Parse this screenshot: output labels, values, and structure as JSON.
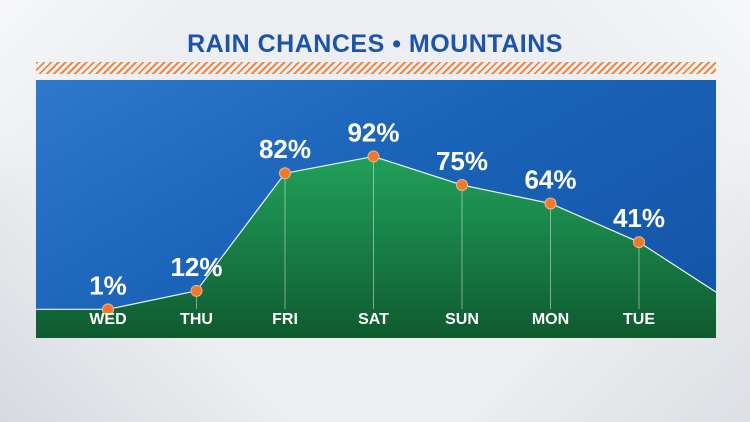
{
  "title": "RAIN CHANCES •  MOUNTAINS",
  "colors": {
    "title": "#1c54a8",
    "sky": "#1a63b8",
    "area_top": "#21a15a",
    "area_bottom": "#0f5a30",
    "marker": "#ef7a2c",
    "stripe": "#ea8a45"
  },
  "chart_data": {
    "type": "area",
    "title": "RAIN CHANCES •  MOUNTAINS",
    "categories": [
      "WED",
      "THU",
      "FRI",
      "SAT",
      "SUN",
      "MON",
      "TUE"
    ],
    "values": [
      1,
      12,
      82,
      92,
      75,
      64,
      41
    ],
    "data_labels": [
      "1%",
      "12%",
      "82%",
      "92%",
      "75%",
      "64%",
      "41%"
    ],
    "unit": "%",
    "ylim": [
      0,
      100
    ],
    "grid": false,
    "legend": "none"
  }
}
